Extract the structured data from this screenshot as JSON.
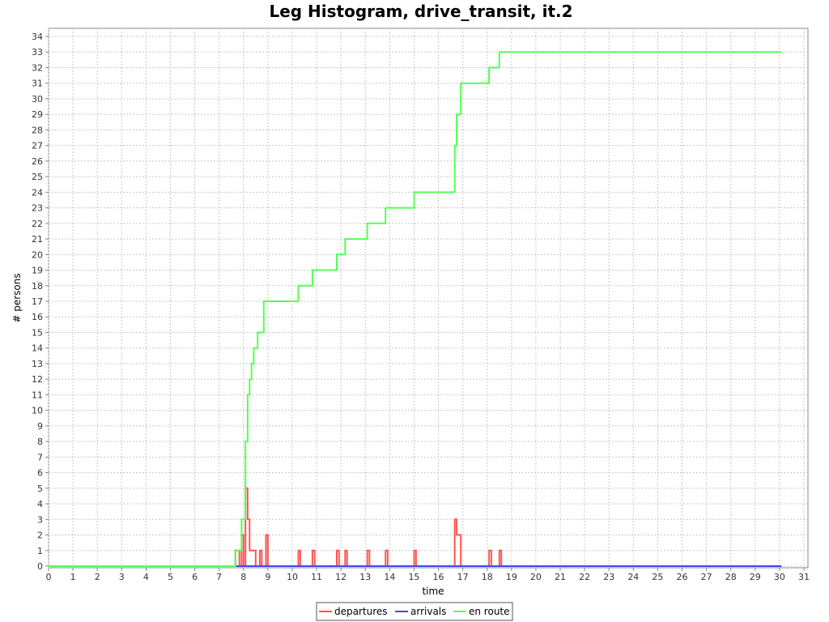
{
  "chart_data": {
    "type": "line",
    "title": "Leg Histogram, drive_transit, it.2",
    "xlabel": "time",
    "ylabel": "# persons",
    "xlim": [
      0,
      31
    ],
    "ylim": [
      0,
      34
    ],
    "xticks": [
      0,
      1,
      2,
      3,
      4,
      5,
      6,
      7,
      8,
      9,
      10,
      11,
      12,
      13,
      14,
      15,
      16,
      17,
      18,
      19,
      20,
      21,
      22,
      23,
      24,
      25,
      26,
      27,
      28,
      29,
      30,
      31
    ],
    "yticks": [
      0,
      1,
      2,
      3,
      4,
      5,
      6,
      7,
      8,
      9,
      10,
      11,
      12,
      13,
      14,
      15,
      16,
      17,
      18,
      19,
      20,
      21,
      22,
      23,
      24,
      25,
      26,
      27,
      28,
      29,
      30,
      31,
      32,
      33,
      34
    ],
    "grid": true,
    "legend_position": "bottom",
    "series": [
      {
        "name": "departures",
        "color": "#ff5555",
        "step": true,
        "points": [
          [
            0,
            0
          ],
          [
            7.67,
            0
          ],
          [
            7.67,
            1
          ],
          [
            7.83,
            1
          ],
          [
            7.83,
            0
          ],
          [
            7.92,
            0
          ],
          [
            7.92,
            2
          ],
          [
            8.0,
            2
          ],
          [
            8.0,
            0
          ],
          [
            8.08,
            0
          ],
          [
            8.08,
            5
          ],
          [
            8.17,
            5
          ],
          [
            8.17,
            3
          ],
          [
            8.25,
            3
          ],
          [
            8.25,
            1
          ],
          [
            8.5,
            1
          ],
          [
            8.5,
            0
          ],
          [
            8.67,
            0
          ],
          [
            8.67,
            1
          ],
          [
            8.75,
            1
          ],
          [
            8.75,
            0
          ],
          [
            8.92,
            0
          ],
          [
            8.92,
            2
          ],
          [
            9.0,
            2
          ],
          [
            9.0,
            0
          ],
          [
            10.25,
            0
          ],
          [
            10.25,
            1
          ],
          [
            10.33,
            1
          ],
          [
            10.33,
            0
          ],
          [
            10.83,
            0
          ],
          [
            10.83,
            1
          ],
          [
            10.92,
            1
          ],
          [
            10.92,
            0
          ],
          [
            11.83,
            0
          ],
          [
            11.83,
            1
          ],
          [
            11.92,
            1
          ],
          [
            11.92,
            0
          ],
          [
            12.17,
            0
          ],
          [
            12.17,
            1
          ],
          [
            12.25,
            1
          ],
          [
            12.25,
            0
          ],
          [
            13.08,
            0
          ],
          [
            13.08,
            1
          ],
          [
            13.17,
            1
          ],
          [
            13.17,
            0
          ],
          [
            13.83,
            0
          ],
          [
            13.83,
            1
          ],
          [
            13.92,
            1
          ],
          [
            13.92,
            0
          ],
          [
            15.0,
            0
          ],
          [
            15.0,
            1
          ],
          [
            15.08,
            1
          ],
          [
            15.08,
            0
          ],
          [
            16.67,
            0
          ],
          [
            16.67,
            3
          ],
          [
            16.75,
            3
          ],
          [
            16.75,
            2
          ],
          [
            16.92,
            2
          ],
          [
            16.92,
            0
          ],
          [
            18.08,
            0
          ],
          [
            18.08,
            1
          ],
          [
            18.17,
            1
          ],
          [
            18.17,
            0
          ],
          [
            18.5,
            0
          ],
          [
            18.5,
            1
          ],
          [
            18.58,
            1
          ],
          [
            18.58,
            0
          ],
          [
            30.08,
            0
          ]
        ]
      },
      {
        "name": "arrivals",
        "color": "#4444ff",
        "step": true,
        "points": [
          [
            0,
            0
          ],
          [
            30.08,
            0
          ]
        ]
      },
      {
        "name": "en route",
        "color": "#55ff55",
        "step": true,
        "points": [
          [
            0,
            0
          ],
          [
            7.67,
            0
          ],
          [
            7.67,
            1
          ],
          [
            7.92,
            1
          ],
          [
            7.92,
            3
          ],
          [
            8.08,
            3
          ],
          [
            8.08,
            8
          ],
          [
            8.17,
            8
          ],
          [
            8.17,
            11
          ],
          [
            8.25,
            11
          ],
          [
            8.25,
            12
          ],
          [
            8.33,
            12
          ],
          [
            8.33,
            13
          ],
          [
            8.42,
            13
          ],
          [
            8.42,
            14
          ],
          [
            8.58,
            14
          ],
          [
            8.58,
            15
          ],
          [
            8.83,
            15
          ],
          [
            8.83,
            17
          ],
          [
            10.25,
            17
          ],
          [
            10.25,
            18
          ],
          [
            10.83,
            18
          ],
          [
            10.83,
            19
          ],
          [
            11.83,
            19
          ],
          [
            11.83,
            20
          ],
          [
            12.17,
            20
          ],
          [
            12.17,
            21
          ],
          [
            13.08,
            21
          ],
          [
            13.08,
            22
          ],
          [
            13.83,
            22
          ],
          [
            13.83,
            23
          ],
          [
            15.0,
            23
          ],
          [
            15.0,
            24
          ],
          [
            16.67,
            24
          ],
          [
            16.67,
            27
          ],
          [
            16.75,
            27
          ],
          [
            16.75,
            29
          ],
          [
            16.92,
            29
          ],
          [
            16.92,
            31
          ],
          [
            18.08,
            31
          ],
          [
            18.08,
            32
          ],
          [
            18.5,
            32
          ],
          [
            18.5,
            33
          ],
          [
            30.08,
            33
          ]
        ]
      }
    ]
  }
}
